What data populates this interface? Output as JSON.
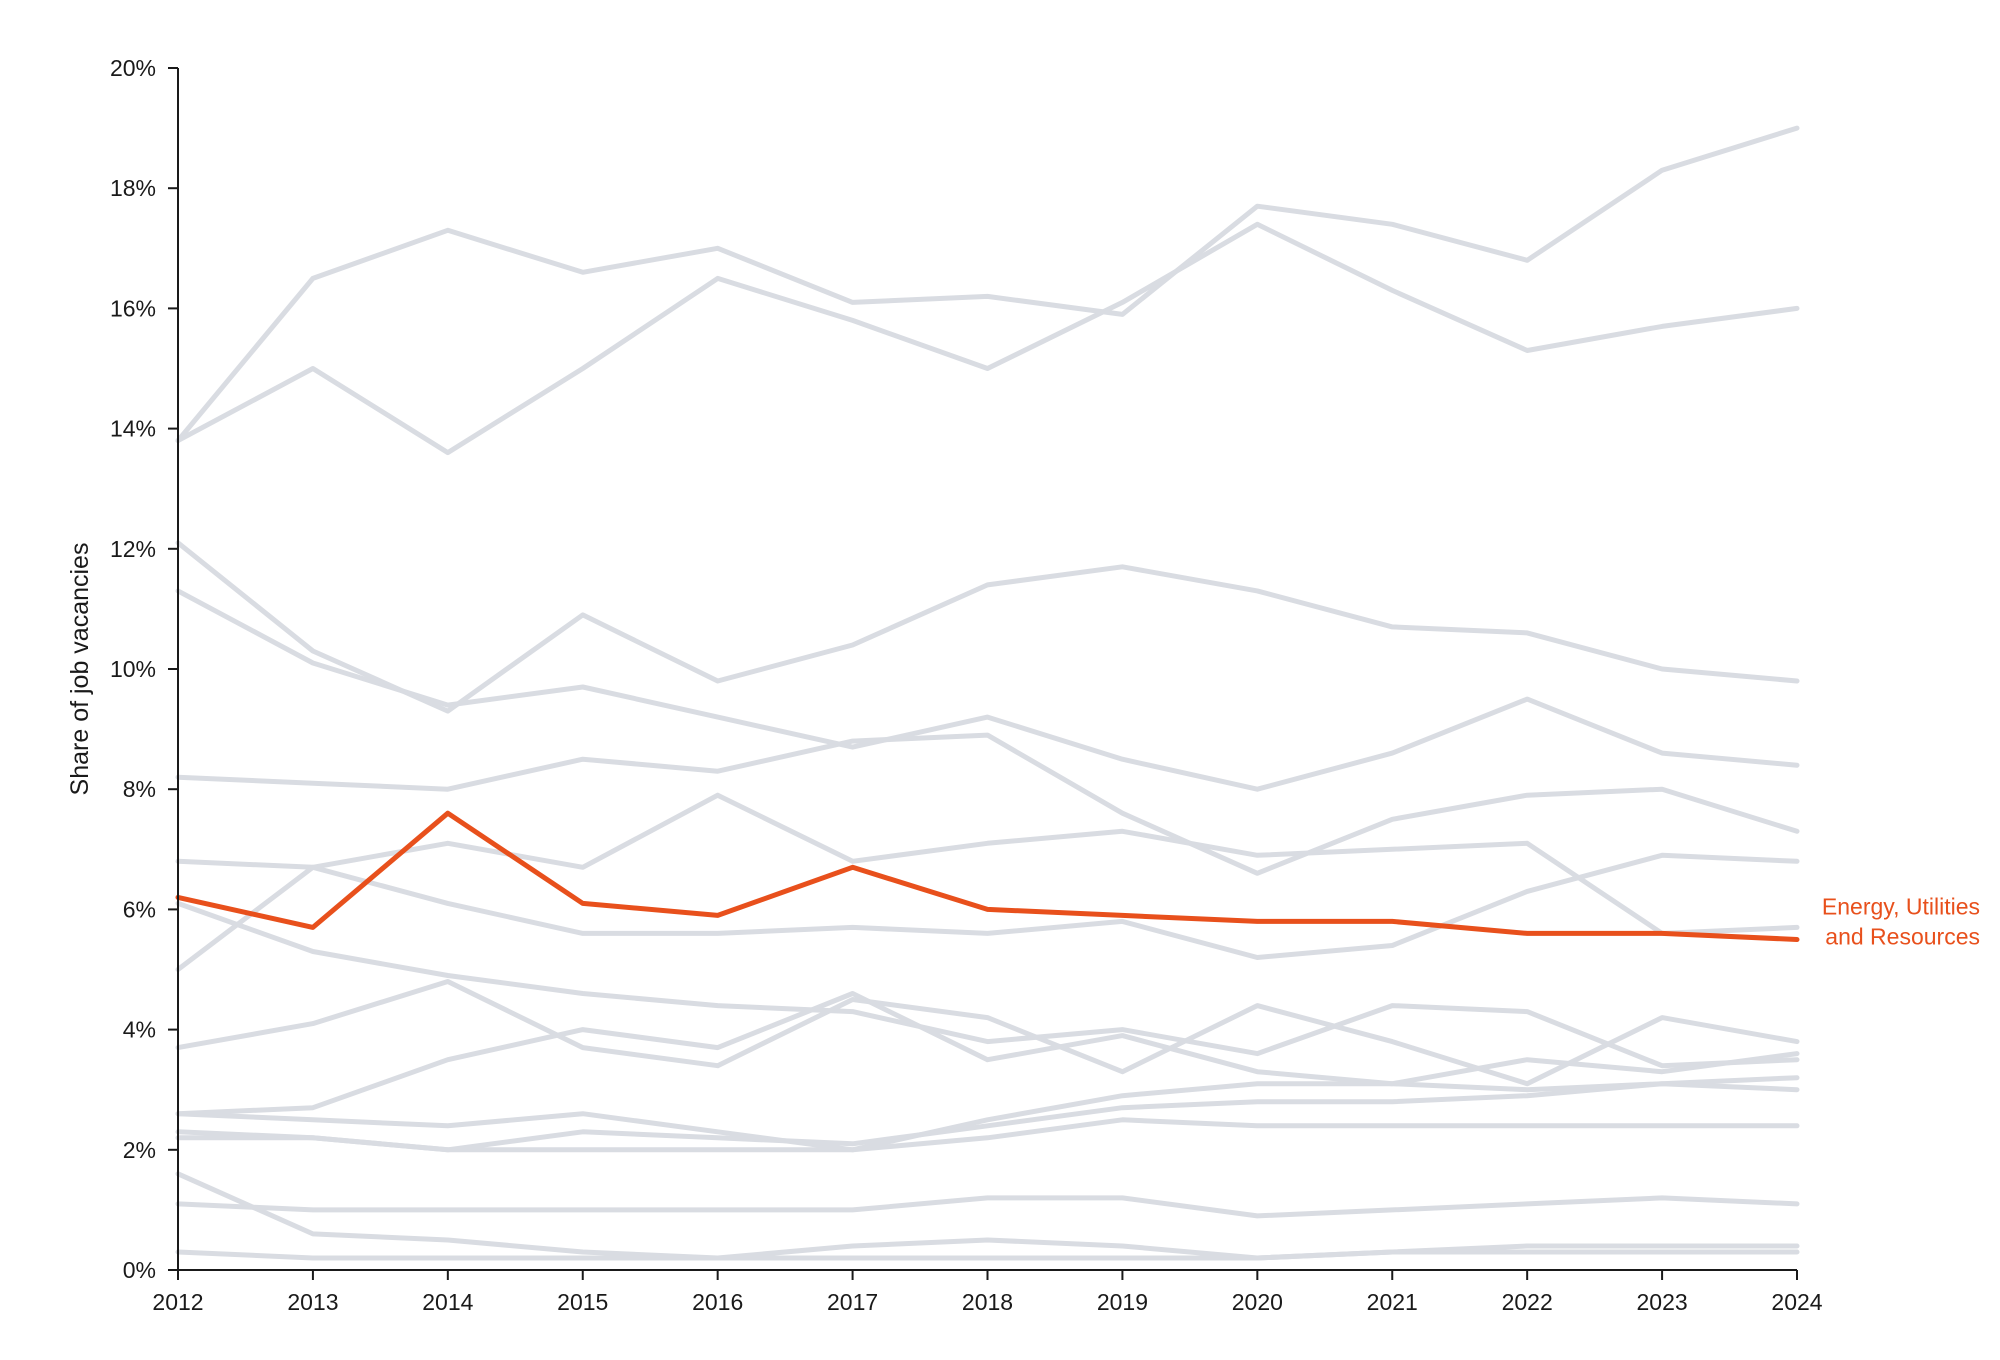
{
  "chart_data": {
    "type": "line",
    "title": "",
    "xlabel": "",
    "ylabel": "Share of job vacancies",
    "x": [
      "2012",
      "2013",
      "2014",
      "2015",
      "2016",
      "2017",
      "2018",
      "2019",
      "2020",
      "2021",
      "2022",
      "2023",
      "2024"
    ],
    "ylim": [
      0,
      20
    ],
    "y_ticks": [
      "0%",
      "2%",
      "4%",
      "6%",
      "8%",
      "10%",
      "12%",
      "14%",
      "16%",
      "18%",
      "20%"
    ],
    "y_tick_values": [
      0,
      2,
      4,
      6,
      8,
      10,
      12,
      14,
      16,
      18,
      20
    ],
    "grid": false,
    "legend": "none",
    "colors": {
      "background": "#d9dce2",
      "highlight": "#e8501c",
      "axis": "#1a1a1a"
    },
    "highlight": {
      "label_lines": [
        "Energy, Utilities",
        "and Resources"
      ],
      "values": [
        6.2,
        5.7,
        7.6,
        6.1,
        5.9,
        6.7,
        6.0,
        5.9,
        5.8,
        5.8,
        5.6,
        5.6,
        5.5
      ]
    },
    "series": [
      {
        "values": [
          13.8,
          16.5,
          17.3,
          16.6,
          17.0,
          16.1,
          16.2,
          15.9,
          17.7,
          17.4,
          16.8,
          18.3,
          19.0
        ]
      },
      {
        "values": [
          13.8,
          15.0,
          13.6,
          15.0,
          16.5,
          15.8,
          15.0,
          16.1,
          17.4,
          16.3,
          15.3,
          15.7,
          16.0
        ]
      },
      {
        "values": [
          12.1,
          10.3,
          9.3,
          10.9,
          9.8,
          10.4,
          11.4,
          11.7,
          11.3,
          10.7,
          10.6,
          10.0,
          9.8
        ]
      },
      {
        "values": [
          11.3,
          10.1,
          9.4,
          9.7,
          9.2,
          8.7,
          9.2,
          8.5,
          8.0,
          8.6,
          9.5,
          8.6,
          8.4
        ]
      },
      {
        "values": [
          8.2,
          8.1,
          8.0,
          8.5,
          8.3,
          8.8,
          8.9,
          7.6,
          6.6,
          7.5,
          7.9,
          8.0,
          7.3
        ]
      },
      {
        "values": [
          5.0,
          6.7,
          7.1,
          6.7,
          7.9,
          6.8,
          7.1,
          7.3,
          6.9,
          7.0,
          7.1,
          5.6,
          5.7
        ]
      },
      {
        "values": [
          6.8,
          6.7,
          6.1,
          5.6,
          5.6,
          5.7,
          5.6,
          5.8,
          5.2,
          5.4,
          6.3,
          6.9,
          6.8
        ]
      },
      {
        "values": [
          6.1,
          5.3,
          4.9,
          4.6,
          4.4,
          4.3,
          3.8,
          4.0,
          3.6,
          4.4,
          4.3,
          3.4,
          3.5
        ]
      },
      {
        "values": [
          3.7,
          4.1,
          4.8,
          3.7,
          3.4,
          4.5,
          4.2,
          3.3,
          4.4,
          3.8,
          3.1,
          4.2,
          3.8
        ]
      },
      {
        "values": [
          2.6,
          2.7,
          3.5,
          4.0,
          3.7,
          4.6,
          3.5,
          3.9,
          3.3,
          3.1,
          3.5,
          3.3,
          3.6
        ]
      },
      {
        "values": [
          2.6,
          2.5,
          2.4,
          2.6,
          2.3,
          2.0,
          2.5,
          2.9,
          3.1,
          3.1,
          3.0,
          3.1,
          3.2
        ]
      },
      {
        "values": [
          2.3,
          2.2,
          2.0,
          2.3,
          2.2,
          2.1,
          2.4,
          2.7,
          2.8,
          2.8,
          2.9,
          3.1,
          3.0
        ]
      },
      {
        "values": [
          2.2,
          2.2,
          2.0,
          2.0,
          2.0,
          2.0,
          2.2,
          2.5,
          2.4,
          2.4,
          2.4,
          2.4,
          2.4
        ]
      },
      {
        "values": [
          1.6,
          0.6,
          0.5,
          0.3,
          0.2,
          0.2,
          0.2,
          0.2,
          0.2,
          0.3,
          0.3,
          0.3,
          0.3
        ]
      },
      {
        "values": [
          1.1,
          1.0,
          1.0,
          1.0,
          1.0,
          1.0,
          1.2,
          1.2,
          0.9,
          1.0,
          1.1,
          1.2,
          1.1
        ]
      },
      {
        "values": [
          0.3,
          0.2,
          0.2,
          0.2,
          0.2,
          0.4,
          0.5,
          0.4,
          0.2,
          0.3,
          0.4,
          0.4,
          0.4
        ]
      }
    ]
  }
}
